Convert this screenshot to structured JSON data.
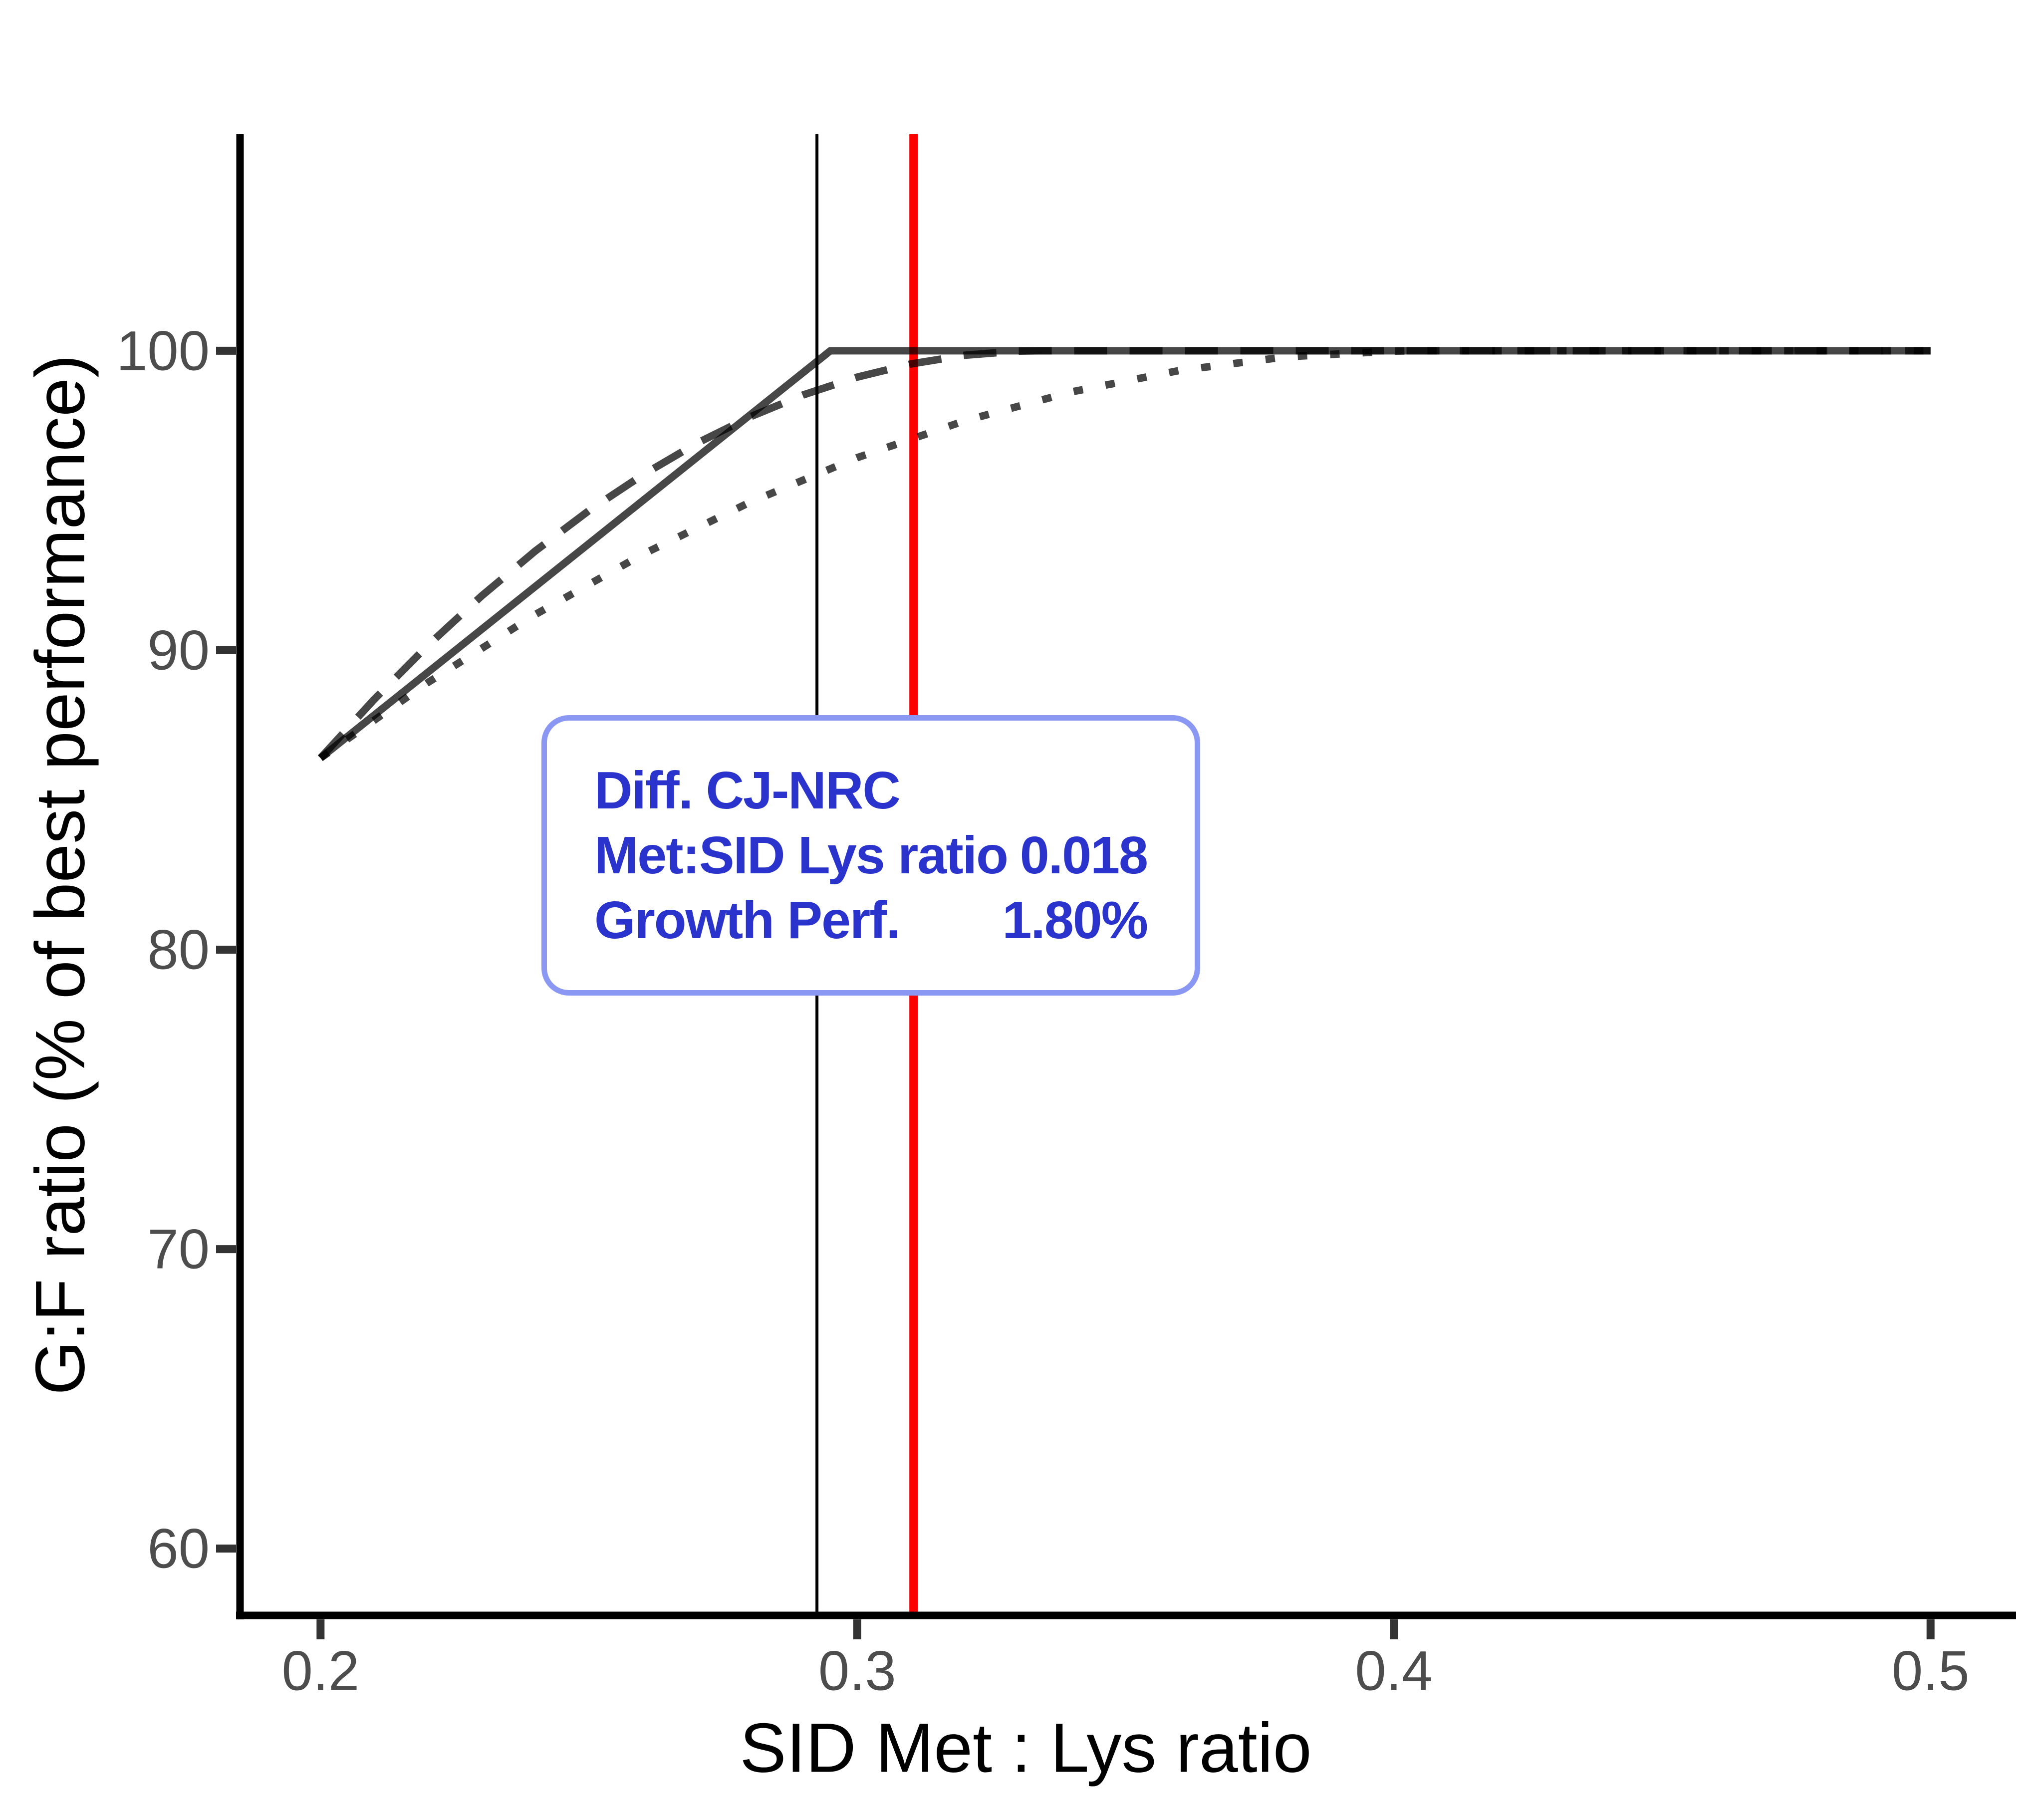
{
  "figure": {
    "background": "#FFFFFF",
    "axis_line_color": "#000000",
    "tick_mark_color": "#333333",
    "tick_label_color": "#4D4D4D",
    "axis_title_color": "#000000"
  },
  "chart_data": {
    "type": "line",
    "title": "",
    "xlabel": "SID Met : Lys ratio",
    "ylabel": "G:F ratio (% of best performance)",
    "xlim": [
      0.185,
      0.515
    ],
    "ylim": [
      57.77,
      107.23
    ],
    "grid": false,
    "legend_position": "none",
    "x_ticks": [
      {
        "v": 0.2,
        "label": "0.2"
      },
      {
        "v": 0.3,
        "label": "0.3"
      },
      {
        "v": 0.4,
        "label": "0.4"
      },
      {
        "v": 0.5,
        "label": "0.5"
      }
    ],
    "y_ticks": [
      {
        "v": 60,
        "label": "60"
      },
      {
        "v": 70,
        "label": "70"
      },
      {
        "v": 80,
        "label": "80"
      },
      {
        "v": 90,
        "label": "90"
      },
      {
        "v": 100,
        "label": "100"
      }
    ],
    "series_color": "rgba(0,0,0,0.72)",
    "series_width": 15,
    "series": [
      {
        "name": "linear-plateau model",
        "style": "solid",
        "points": [
          [
            0.2,
            86.4
          ],
          [
            0.295,
            100.0
          ],
          [
            0.5,
            100.0
          ]
        ]
      },
      {
        "name": "curvilinear-plateau model (dashed)",
        "style": "dashed",
        "points": [
          [
            0.2,
            86.4
          ],
          [
            0.21,
            88.36
          ],
          [
            0.22,
            90.16
          ],
          [
            0.23,
            91.81
          ],
          [
            0.24,
            93.31
          ],
          [
            0.25,
            94.66
          ],
          [
            0.26,
            95.85
          ],
          [
            0.27,
            96.9
          ],
          [
            0.28,
            97.79
          ],
          [
            0.29,
            98.53
          ],
          [
            0.3,
            99.12
          ],
          [
            0.31,
            99.56
          ],
          [
            0.32,
            99.85
          ],
          [
            0.33,
            99.99
          ],
          [
            0.334,
            100.0
          ],
          [
            0.5,
            100.0
          ]
        ]
      },
      {
        "name": "curvilinear-plateau model (dotted)",
        "style": "dotted",
        "points": [
          [
            0.2,
            86.4
          ],
          [
            0.22,
            88.92
          ],
          [
            0.24,
            91.19
          ],
          [
            0.26,
            93.2
          ],
          [
            0.28,
            94.94
          ],
          [
            0.3,
            96.43
          ],
          [
            0.32,
            97.66
          ],
          [
            0.34,
            98.63
          ],
          [
            0.36,
            99.34
          ],
          [
            0.38,
            99.8
          ],
          [
            0.4,
            99.99
          ],
          [
            0.405,
            100.0
          ],
          [
            0.5,
            100.0
          ]
        ]
      }
    ],
    "vlines": [
      {
        "name": "NRC estimate",
        "x": 0.2925,
        "color": "#000000",
        "width": 6
      },
      {
        "name": "CJ estimate",
        "x": 0.3105,
        "color": "#FB0100",
        "width": 17
      }
    ]
  },
  "annotation": {
    "title": "Diff. CJ-NRC",
    "rows": [
      {
        "label": "Met:SID Lys ratio",
        "value": "0.018"
      },
      {
        "label": "Growth Perf.",
        "value": "1.80%"
      }
    ],
    "text_color": "#2A33CB",
    "border_color": "#8A97F3",
    "background": "#FFFFFF"
  }
}
